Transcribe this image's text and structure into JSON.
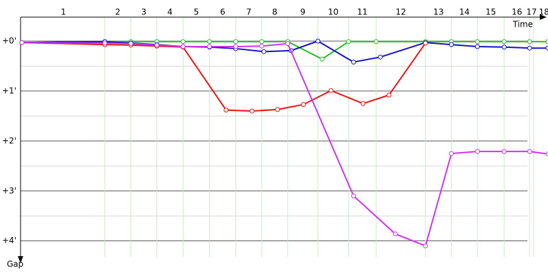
{
  "chart_data": {
    "type": "line",
    "x_label": "Time",
    "y_label": "Gap",
    "xlim": [
      0,
      20.05
    ],
    "ylim": [
      -0.48,
      4.32
    ],
    "yticks": [
      {
        "value": 0,
        "label": "+0'"
      },
      {
        "value": 1,
        "label": "+1'"
      },
      {
        "value": 2,
        "label": "+2'"
      },
      {
        "value": 3,
        "label": "+3'"
      },
      {
        "value": 4,
        "label": "+4'"
      }
    ],
    "yminor_ticks": [
      0.5,
      1.5,
      2.5,
      3.5
    ],
    "laps": [
      "1",
      "2",
      "3",
      "4",
      "5",
      "6",
      "7",
      "8",
      "9",
      "10",
      "11",
      "12",
      "13",
      "14",
      "15",
      "16",
      "17",
      "18"
    ],
    "lap_ends": [
      3.16,
      4.15,
      5.14,
      6.14,
      7.15,
      8.15,
      9.14,
      10.13,
      11.28,
      12.45,
      13.5,
      15.38,
      16.37,
      17.36,
      18.38,
      19.35,
      19.5,
      20.3
    ],
    "grid": true,
    "series": [
      {
        "color": "#22bb22",
        "x": [
          0,
          3.16,
          4.15,
          5.14,
          6.14,
          7.15,
          8.15,
          9.14,
          10.13,
          11.44,
          12.45,
          13.5,
          15.38,
          16.37,
          17.36,
          18.38,
          19.35,
          20.05
        ],
        "values": [
          0.03,
          0.01,
          0.01,
          0.01,
          0.01,
          0.01,
          0.01,
          0.01,
          0.01,
          0.36,
          0.01,
          0.01,
          0.01,
          0.01,
          0.01,
          0.01,
          0.01,
          0.01
        ]
      },
      {
        "color": "#1111cc",
        "x": [
          0,
          3.16,
          4.15,
          5.14,
          6.14,
          7.15,
          8.15,
          9.22,
          10.26,
          11.28,
          12.64,
          13.66,
          15.38,
          16.37,
          17.36,
          18.38,
          19.35,
          20.05
        ],
        "values": [
          0.03,
          0.01,
          0.04,
          0.07,
          0.11,
          0.12,
          0.15,
          0.21,
          0.19,
          0.0,
          0.42,
          0.32,
          0.03,
          0.07,
          0.11,
          0.12,
          0.14,
          0.14
        ]
      },
      {
        "color": "#ee1111",
        "x": [
          0,
          3.16,
          4.15,
          5.14,
          6.14,
          7.78,
          8.77,
          9.74,
          10.73,
          11.78,
          13.0,
          13.99,
          15.38
        ],
        "values": [
          0.03,
          0.07,
          0.08,
          0.1,
          0.12,
          1.38,
          1.4,
          1.37,
          1.27,
          0.99,
          1.25,
          1.08,
          0.04
        ]
      },
      {
        "color": "#cc33ee",
        "x": [
          0,
          3.16,
          4.15,
          5.14,
          6.14,
          7.15,
          8.15,
          9.14,
          10.13,
          12.64,
          14.23,
          15.38,
          16.37,
          17.36,
          18.38,
          19.35,
          20.05
        ],
        "values": [
          0.03,
          0.04,
          0.05,
          0.08,
          0.11,
          0.11,
          0.11,
          0.1,
          0.05,
          3.1,
          3.86,
          4.1,
          2.25,
          2.21,
          2.21,
          2.21,
          2.26
        ]
      }
    ]
  }
}
